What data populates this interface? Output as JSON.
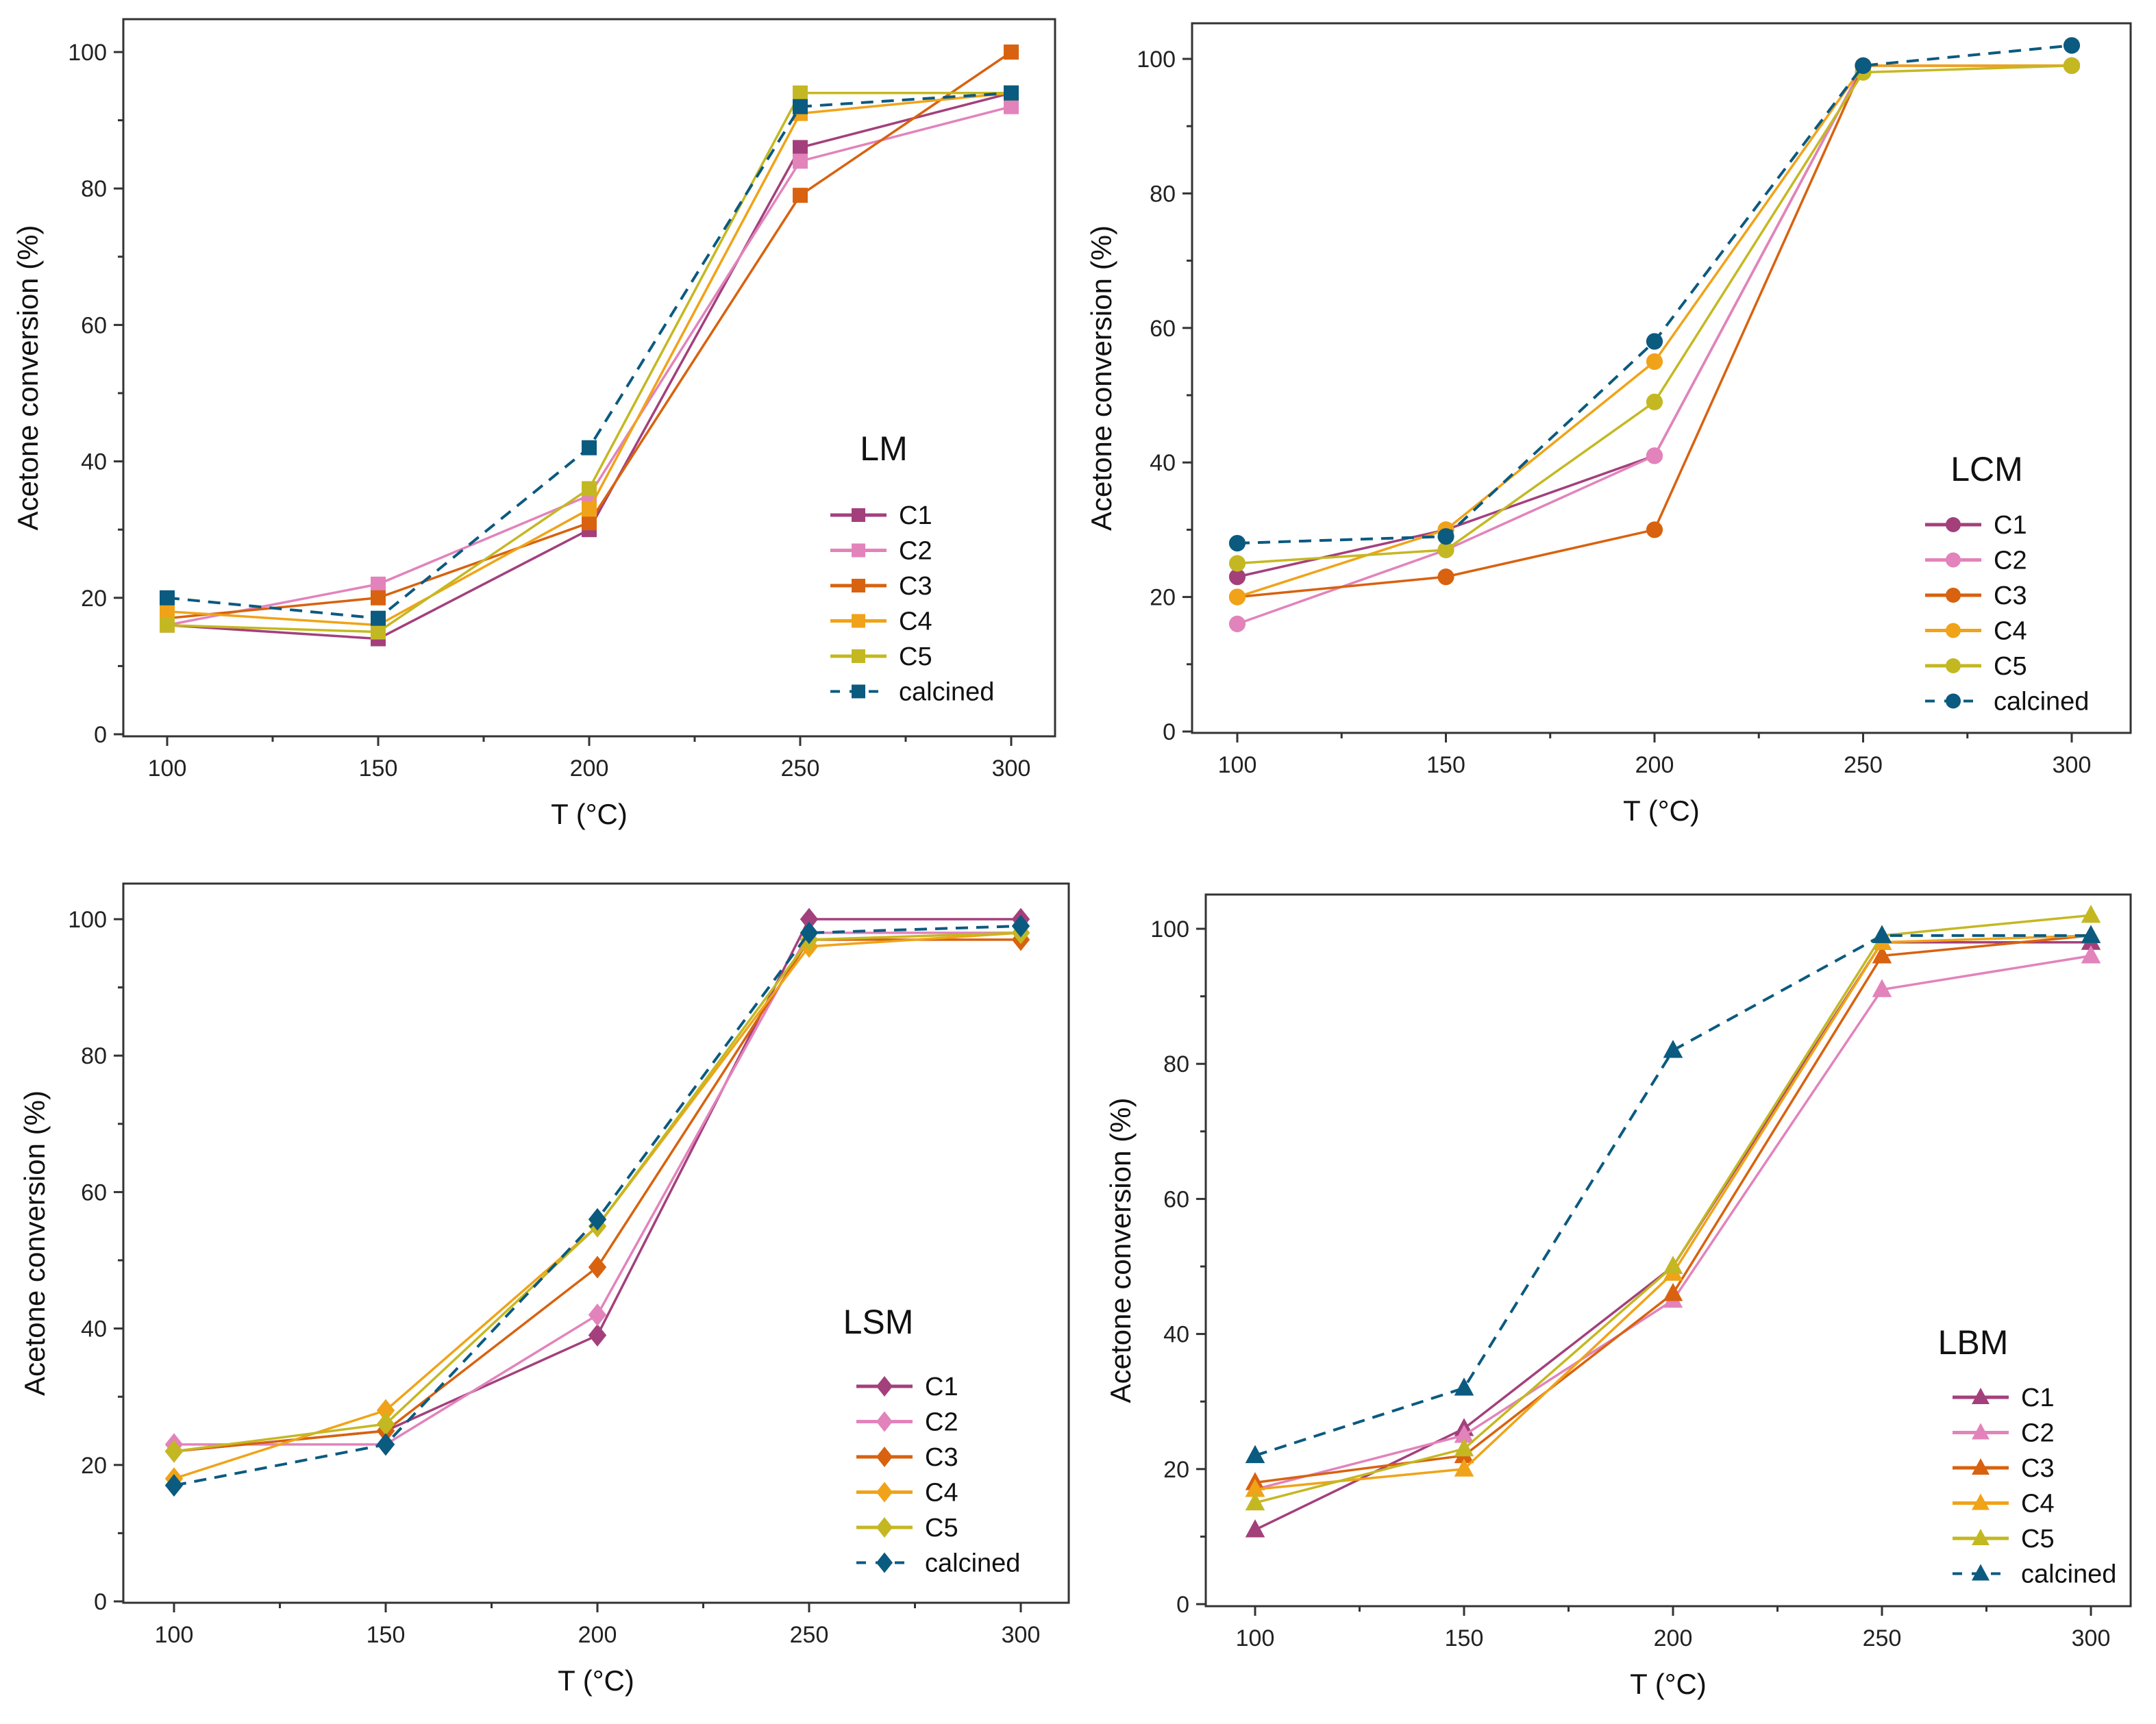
{
  "colors": {
    "C1": "#a3407c",
    "C2": "#e283bb",
    "C3": "#d8620f",
    "C4": "#f0a318",
    "C5": "#c4b822",
    "calcined": "#0b5a80"
  },
  "chart_data": [
    {
      "type": "line",
      "title": "LM",
      "marker": "square",
      "xlabel": "T (°C)",
      "ylabel": "Acetone conversion (%)",
      "x": [
        100,
        150,
        200,
        250,
        300
      ],
      "xticks": [
        "100",
        "150",
        "200",
        "250",
        "300"
      ],
      "ylim": [
        0,
        100
      ],
      "yticks": [
        "0",
        "20",
        "40",
        "60",
        "80",
        "100"
      ],
      "legend": "bottom-right",
      "series": [
        {
          "name": "C1",
          "values": [
            16,
            14,
            30,
            86,
            94
          ]
        },
        {
          "name": "C2",
          "values": [
            16,
            22,
            35,
            84,
            92
          ]
        },
        {
          "name": "C3",
          "values": [
            17,
            20,
            31,
            79,
            100
          ]
        },
        {
          "name": "C4",
          "values": [
            18,
            16,
            33,
            91,
            94
          ]
        },
        {
          "name": "C5",
          "values": [
            16,
            15,
            36,
            94,
            94
          ]
        },
        {
          "name": "calcined",
          "values": [
            20,
            17,
            42,
            92,
            94
          ],
          "dashed": true
        }
      ]
    },
    {
      "type": "line",
      "title": "LCM",
      "marker": "circle",
      "xlabel": "T (°C)",
      "ylabel": "Acetone conversion (%)",
      "x": [
        100,
        150,
        200,
        250,
        300
      ],
      "xticks": [
        "100",
        "150",
        "200",
        "250",
        "300"
      ],
      "ylim": [
        0,
        100
      ],
      "yticks": [
        "0",
        "20",
        "40",
        "60",
        "80",
        "100"
      ],
      "legend": "bottom-right",
      "series": [
        {
          "name": "C1",
          "values": [
            23,
            30,
            41,
            99,
            99
          ]
        },
        {
          "name": "C2",
          "values": [
            16,
            27,
            41,
            99,
            99
          ]
        },
        {
          "name": "C3",
          "values": [
            20,
            23,
            30,
            99,
            99
          ]
        },
        {
          "name": "C4",
          "values": [
            20,
            30,
            55,
            99,
            99
          ]
        },
        {
          "name": "C5",
          "values": [
            25,
            27,
            49,
            98,
            99
          ]
        },
        {
          "name": "calcined",
          "values": [
            28,
            29,
            58,
            99,
            102
          ],
          "dashed": true
        }
      ]
    },
    {
      "type": "line",
      "title": "LSM",
      "marker": "diamond",
      "xlabel": "T (°C)",
      "ylabel": "Acetone conversion (%)",
      "x": [
        100,
        150,
        200,
        250,
        300
      ],
      "xticks": [
        "100",
        "150",
        "200",
        "250",
        "300"
      ],
      "ylim": [
        0,
        100
      ],
      "yticks": [
        "0",
        "20",
        "40",
        "60",
        "80",
        "100"
      ],
      "legend": "bottom-right",
      "series": [
        {
          "name": "C1",
          "values": [
            22,
            25,
            39,
            100,
            100
          ]
        },
        {
          "name": "C2",
          "values": [
            23,
            23,
            42,
            98,
            98
          ]
        },
        {
          "name": "C3",
          "values": [
            22,
            25,
            49,
            97,
            97
          ]
        },
        {
          "name": "C4",
          "values": [
            18,
            28,
            55,
            96,
            98
          ]
        },
        {
          "name": "C5",
          "values": [
            22,
            26,
            55,
            97,
            98
          ]
        },
        {
          "name": "calcined",
          "values": [
            17,
            23,
            56,
            98,
            99
          ],
          "dashed": true
        }
      ]
    },
    {
      "type": "line",
      "title": "LBM",
      "marker": "triangle",
      "xlabel": "T (°C)",
      "ylabel": "Acetone conversion (%)",
      "x": [
        100,
        150,
        200,
        250,
        300
      ],
      "xticks": [
        "100",
        "150",
        "200",
        "250",
        "300"
      ],
      "ylim": [
        0,
        100
      ],
      "yticks": [
        "0",
        "20",
        "40",
        "60",
        "80",
        "100"
      ],
      "legend": "bottom-right",
      "series": [
        {
          "name": "C1",
          "values": [
            11,
            26,
            50,
            98,
            98
          ]
        },
        {
          "name": "C2",
          "values": [
            17,
            25,
            45,
            91,
            96
          ]
        },
        {
          "name": "C3",
          "values": [
            18,
            22,
            46,
            96,
            99
          ]
        },
        {
          "name": "C4",
          "values": [
            17,
            20,
            49,
            98,
            99
          ]
        },
        {
          "name": "C5",
          "values": [
            15,
            23,
            50,
            99,
            102
          ]
        },
        {
          "name": "calcined",
          "values": [
            22,
            32,
            82,
            99,
            99
          ],
          "dashed": true
        }
      ]
    }
  ]
}
